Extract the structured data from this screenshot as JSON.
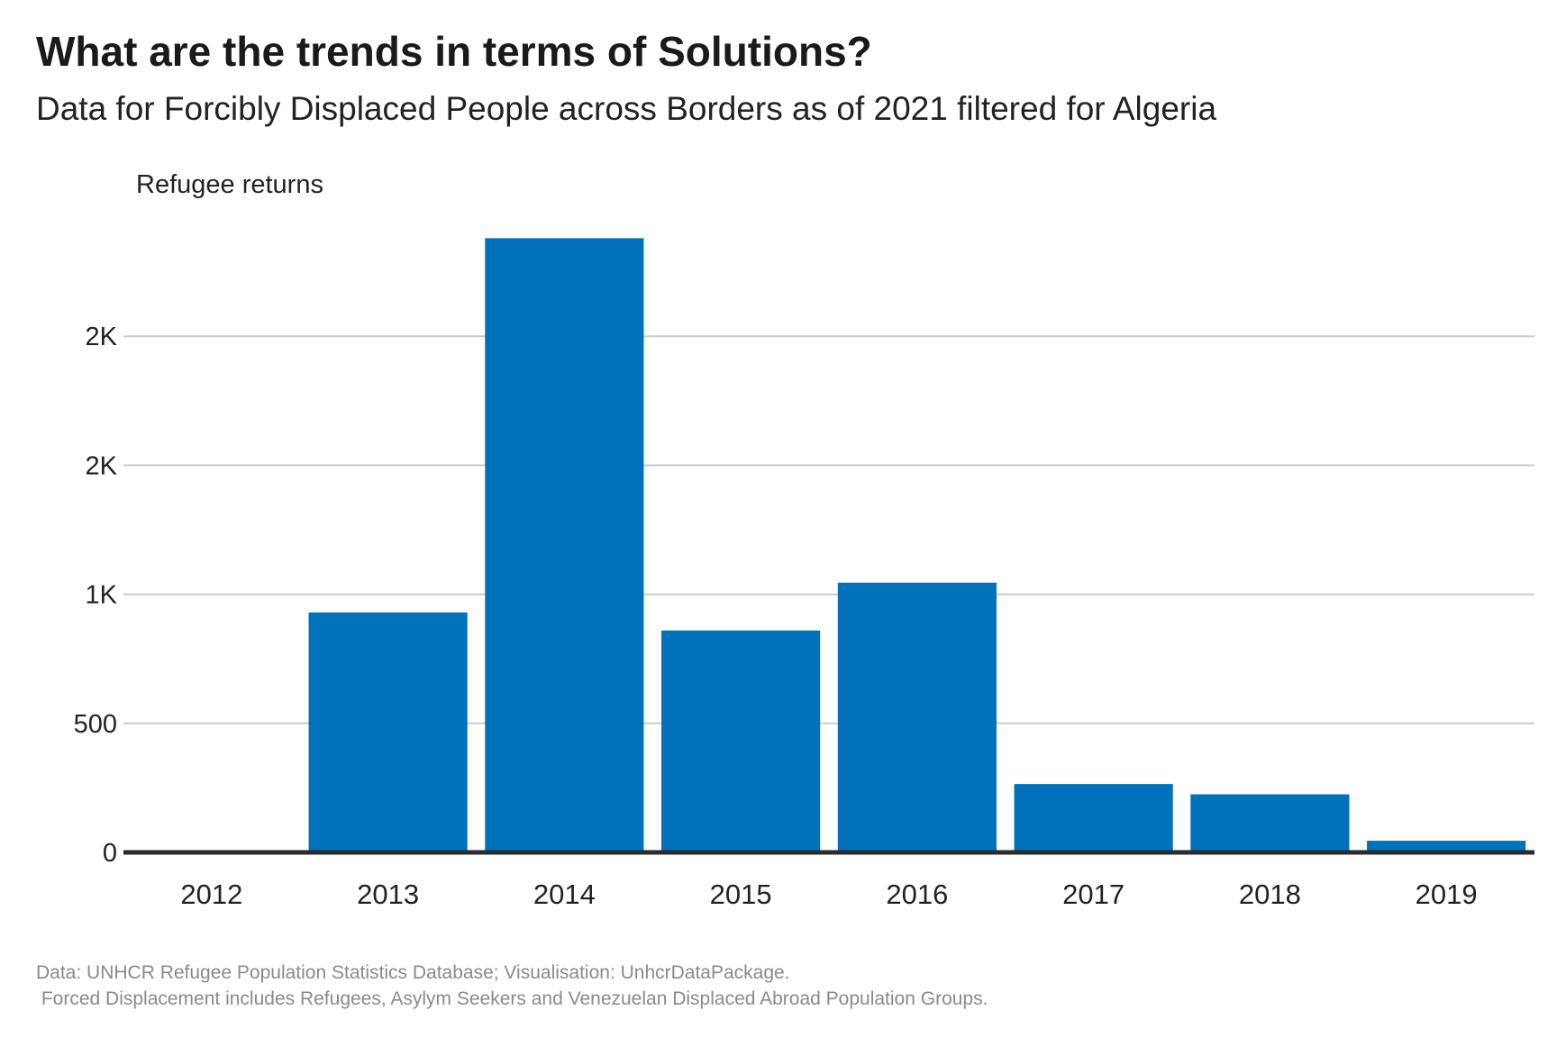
{
  "title": "What are the trends in terms of Solutions?",
  "subtitle": "Data for Forcibly Displaced People across Borders as of 2021 filtered for Algeria",
  "footer": {
    "line1": "Data: UNHCR Refugee Population Statistics Database; Visualisation: UnhcrDataPackage.",
    "line2": " Forced Displacement includes Refugees, Asylym Seekers and Venezuelan Displaced Abroad Population Groups."
  },
  "colors": {
    "bar": "#0072bc",
    "grid": "#cccccc",
    "baseline": "#2b2b2b",
    "text": "#222222"
  },
  "chart_data": {
    "type": "bar",
    "title": "",
    "xlabel": "",
    "ylabel": "Refugee returns",
    "categories": [
      "2012",
      "2013",
      "2014",
      "2015",
      "2016",
      "2017",
      "2018",
      "2019"
    ],
    "values": [
      0,
      930,
      2380,
      860,
      1045,
      265,
      225,
      45
    ],
    "ylim": [
      0,
      2500
    ],
    "yticks": [
      0,
      500,
      1000,
      1500,
      2000
    ],
    "ytick_labels": [
      "0",
      "500",
      "1K",
      "2K",
      "2K"
    ],
    "grid": true,
    "legend": "none"
  }
}
